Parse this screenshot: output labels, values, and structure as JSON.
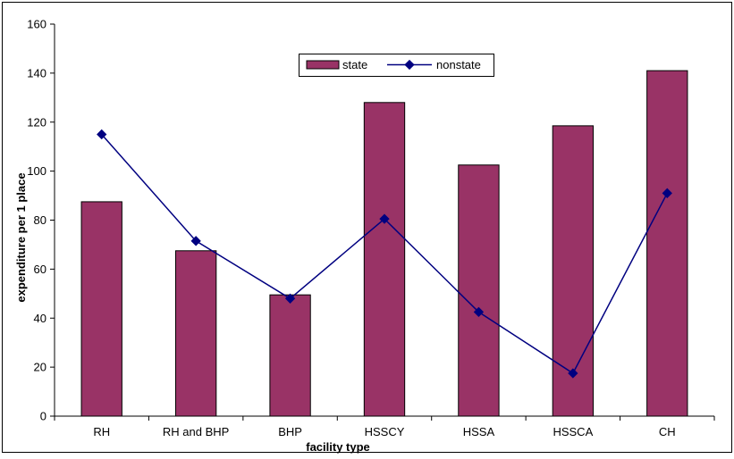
{
  "chart_data": {
    "type": "bar",
    "title": "",
    "xlabel": "facility type",
    "ylabel": "expenditure per 1 place",
    "ylim": [
      0,
      160
    ],
    "y_ticks": [
      0,
      20,
      40,
      60,
      80,
      100,
      120,
      140,
      160
    ],
    "grid": false,
    "legend_position": "top-center",
    "categories": [
      "RH",
      "RH and BHP",
      "BHP",
      "HSSCY",
      "HSSA",
      "HSSCA",
      "CH"
    ],
    "series": [
      {
        "name": "state",
        "type": "bar",
        "color": "#993366",
        "values": [
          87.5,
          67.5,
          49.5,
          128,
          102.5,
          118.5,
          141
        ]
      },
      {
        "name": "nonstate",
        "type": "line",
        "color": "#000080",
        "values": [
          115,
          71.5,
          48,
          80.5,
          42.5,
          17.5,
          91
        ]
      }
    ]
  }
}
